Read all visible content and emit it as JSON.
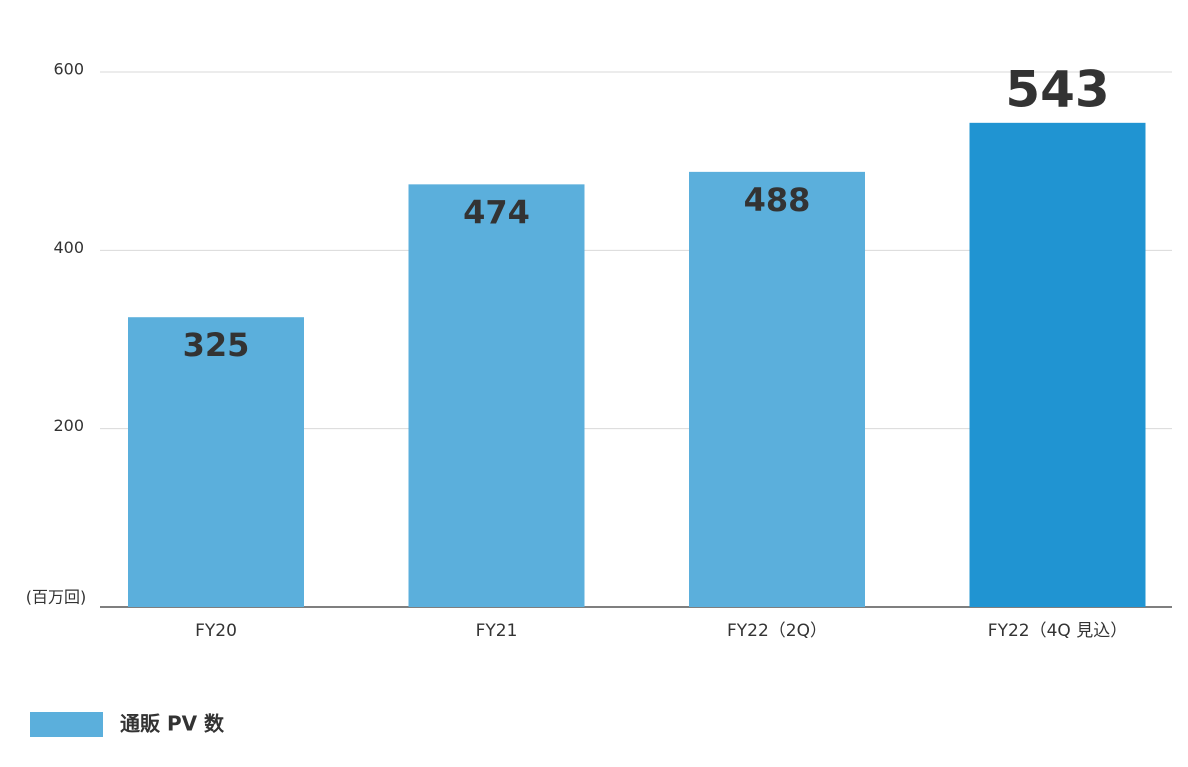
{
  "chart_data": {
    "type": "bar",
    "y_unit_label": "(百万回)",
    "categories": [
      "FY20",
      "FY21",
      "FY22（2Q）",
      "FY22（4Q 見込）"
    ],
    "series": [
      {
        "name": "通販 PV 数",
        "color": "#5bafdc",
        "colors": [
          "#5bafdc",
          "#5bafdc",
          "#5bafdc",
          "#2094d2"
        ],
        "values": [
          325,
          474,
          488,
          543
        ]
      }
    ],
    "ylim": [
      0,
      600
    ],
    "yticks": [
      200,
      400,
      600
    ],
    "grid": true
  }
}
